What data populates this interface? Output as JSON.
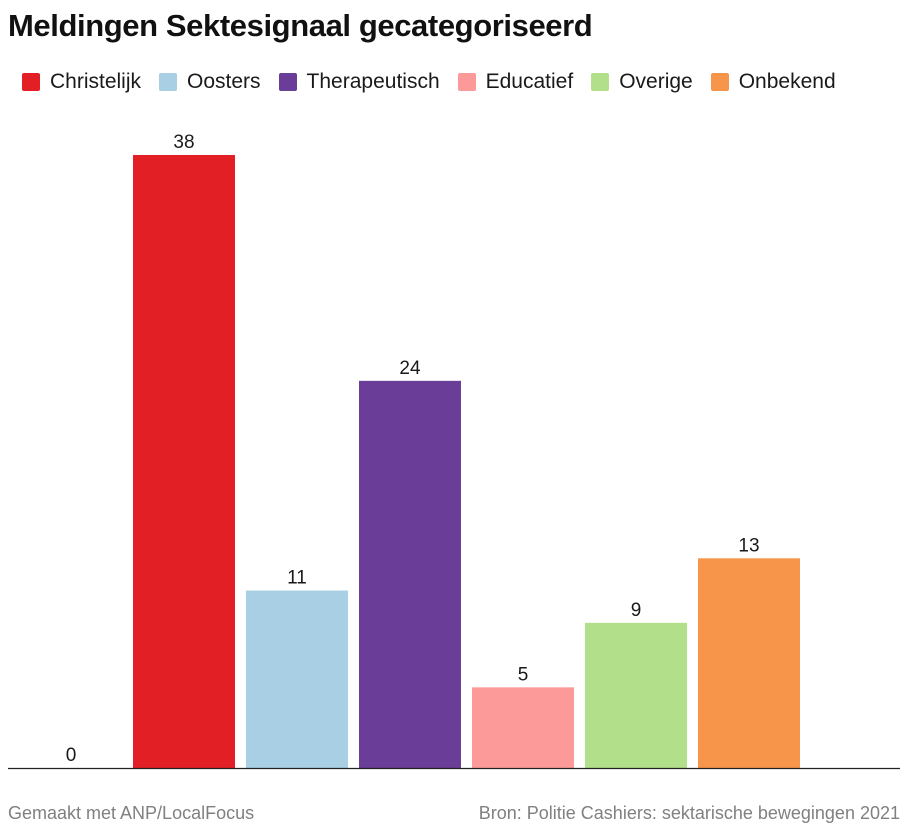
{
  "chart_data": {
    "type": "bar",
    "title": "Meldingen Sektesignaal gecategoriseerd",
    "categories": [
      "",
      "Christelijk",
      "Oosters",
      "Therapeutisch",
      "Educatief",
      "Overige",
      "Onbekend"
    ],
    "values": [
      0,
      38,
      11,
      24,
      5,
      9,
      13
    ],
    "data_labels": [
      "0",
      "38",
      "11",
      "24",
      "5",
      "9",
      "13"
    ],
    "ylim": [
      0,
      38
    ],
    "xlabel": "",
    "ylabel": "",
    "grid": false,
    "legend_position": "top",
    "series_colors": [
      "#e31f26",
      "#e31f26",
      "#a8cfe3",
      "#6a3d98",
      "#fb9a99",
      "#b2df8a",
      "#f7964a"
    ],
    "legend": [
      {
        "label": "Christelijk",
        "color": "#e31f26"
      },
      {
        "label": "Oosters",
        "color": "#a8cfe3"
      },
      {
        "label": "Therapeutisch",
        "color": "#6a3d98"
      },
      {
        "label": "Educatief",
        "color": "#fb9a99"
      },
      {
        "label": "Overige",
        "color": "#b2df8a"
      },
      {
        "label": "Onbekend",
        "color": "#f7964a"
      }
    ]
  },
  "footer": {
    "credit": "Gemaakt met ANP/LocalFocus",
    "source": "Bron:  Politie Cashiers: sektarische bewegingen 2021"
  }
}
